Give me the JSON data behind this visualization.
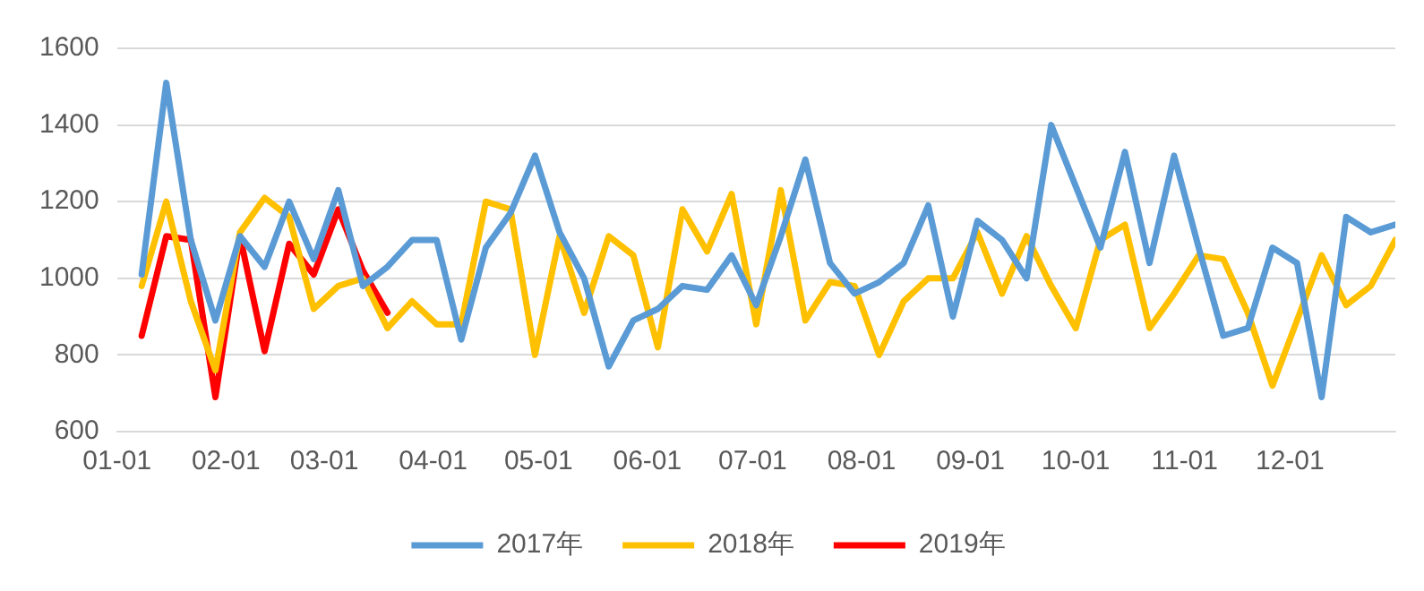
{
  "chart_data": {
    "type": "line",
    "x": [
      "--01-08",
      "--01-15",
      "--01-22",
      "--01-29",
      "--02-05",
      "--02-12",
      "--02-19",
      "--02-26",
      "--03-05",
      "--03-12",
      "--03-19",
      "--03-26",
      "--04-02",
      "--04-09",
      "--04-16",
      "--04-23",
      "--04-30",
      "--05-07",
      "--05-14",
      "--05-21",
      "--05-28",
      "--06-04",
      "--06-11",
      "--06-18",
      "--06-25",
      "--07-02",
      "--07-09",
      "--07-16",
      "--07-23",
      "--07-30",
      "--08-06",
      "--08-13",
      "--08-20",
      "--08-27",
      "--09-03",
      "--09-10",
      "--09-17",
      "--09-24",
      "--10-01",
      "--10-08",
      "--10-15",
      "--10-22",
      "--10-29",
      "--11-05",
      "--11-12",
      "--11-19",
      "--11-26",
      "--12-03",
      "--12-10",
      "--12-17",
      "--12-24",
      "--12-31"
    ],
    "series": [
      {
        "name": "2017年",
        "color": "#5b9bd5",
        "values": [
          1010,
          1510,
          1100,
          890,
          1110,
          1030,
          1200,
          1050,
          1230,
          980,
          1030,
          1100,
          1100,
          840,
          1080,
          1170,
          1320,
          1120,
          1000,
          770,
          890,
          920,
          980,
          970,
          1060,
          930,
          1110,
          1310,
          1040,
          960,
          990,
          1040,
          1190,
          900,
          1150,
          1100,
          1000,
          1400,
          1240,
          1080,
          1330,
          1040,
          1320,
          1080,
          850,
          870,
          1080,
          1040,
          690,
          1160,
          1120,
          1140
        ]
      },
      {
        "name": "2018年",
        "color": "#ffc000",
        "values": [
          980,
          1200,
          940,
          760,
          1120,
          1210,
          1160,
          920,
          980,
          1000,
          870,
          940,
          880,
          880,
          1200,
          1180,
          800,
          1110,
          910,
          1110,
          1060,
          820,
          1180,
          1070,
          1220,
          880,
          1230,
          890,
          990,
          980,
          800,
          940,
          1000,
          1000,
          1120,
          960,
          1110,
          980,
          870,
          1100,
          1140,
          870,
          960,
          1060,
          1050,
          910,
          720,
          890,
          1060,
          930,
          980,
          1100
        ]
      },
      {
        "name": "2019年",
        "color": "#ff0000",
        "x": [
          "--01-08",
          "--01-15",
          "--01-22",
          "--01-29",
          "--02-05",
          "--02-12",
          "--02-19",
          "--02-26",
          "--03-05",
          "--03-12",
          "--03-19"
        ],
        "values": [
          850,
          1110,
          1100,
          690,
          1110,
          810,
          1090,
          1010,
          1180,
          1020,
          910
        ]
      }
    ],
    "xlim": [
      "--01-01",
      "--12-31"
    ],
    "xticks": [
      {
        "value": "--01-01",
        "label": "01-01"
      },
      {
        "value": "--02-01",
        "label": "02-01"
      },
      {
        "value": "--03-01",
        "label": "03-01"
      },
      {
        "value": "--04-01",
        "label": "04-01"
      },
      {
        "value": "--05-01",
        "label": "05-01"
      },
      {
        "value": "--06-01",
        "label": "06-01"
      },
      {
        "value": "--07-01",
        "label": "07-01"
      },
      {
        "value": "--08-01",
        "label": "08-01"
      },
      {
        "value": "--09-01",
        "label": "09-01"
      },
      {
        "value": "--10-01",
        "label": "10-01"
      },
      {
        "value": "--11-01",
        "label": "11-01"
      },
      {
        "value": "--12-01",
        "label": "12-01"
      }
    ],
    "ylim": [
      600,
      1600
    ],
    "yticks": [
      600,
      800,
      1000,
      1200,
      1400,
      1600
    ],
    "grid": "y",
    "legend": "bottom",
    "marker": "none",
    "line_style": "solid"
  }
}
